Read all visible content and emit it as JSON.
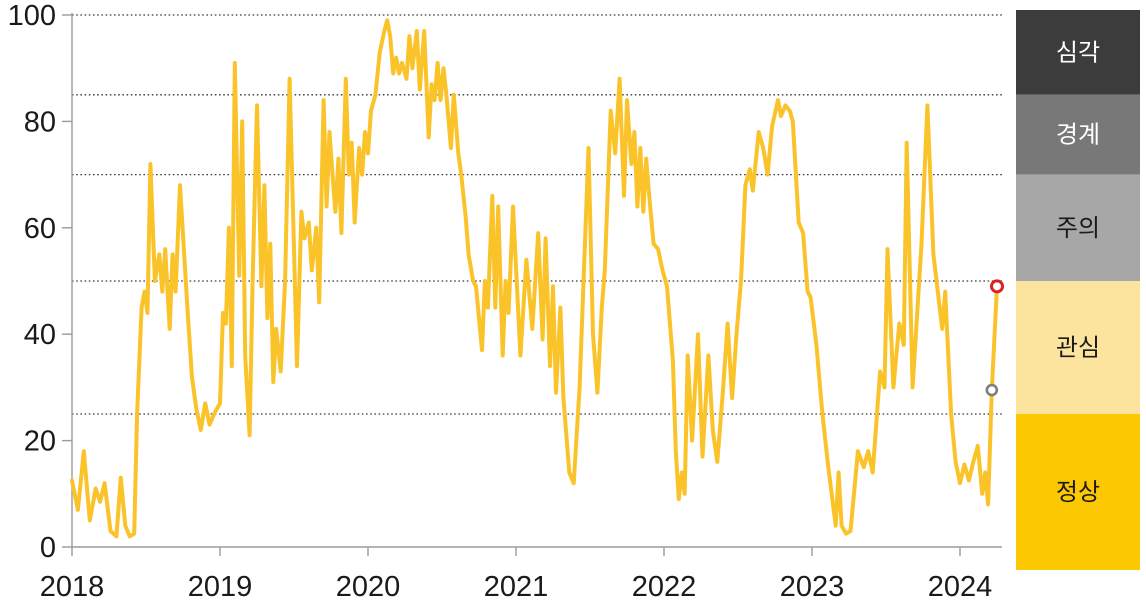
{
  "accent_colors": {
    "line": "#FBC32A",
    "axis": "#9B9B9B",
    "gridline": "#3A3A3A",
    "tick_label": "#1A1A1A",
    "marker_current": "#DF2020",
    "marker_previous": "#7F7F7F"
  },
  "chart_data": {
    "type": "line",
    "title": "",
    "xlabel": "",
    "ylabel": "",
    "x_axis": {
      "ticks": [
        "2018",
        "2019",
        "2020",
        "2021",
        "2022",
        "2023",
        "2024"
      ],
      "range": [
        2018,
        2024.35
      ]
    },
    "y_axis": {
      "ticks": [
        "0",
        "20",
        "40",
        "60",
        "80",
        "100"
      ],
      "tick_values": [
        0,
        20,
        40,
        60,
        80,
        100
      ],
      "range": [
        0,
        100
      ]
    },
    "gridlines_at": [
      100,
      85,
      70,
      50,
      25
    ],
    "grid_style": "dotted horizontal",
    "legend_position": "right color band column",
    "bands": [
      {
        "key": "severe",
        "label": "심각",
        "range": [
          85,
          100
        ],
        "color": "#3C3C3C",
        "text_color": "#FFFFFF"
      },
      {
        "key": "alert",
        "label": "경계",
        "range": [
          70,
          85
        ],
        "color": "#787878",
        "text_color": "#FFFFFF"
      },
      {
        "key": "caution",
        "label": "주의",
        "range": [
          50,
          70
        ],
        "color": "#A7A7A7",
        "text_color": "#1A1A1A"
      },
      {
        "key": "attention",
        "label": "관심",
        "range": [
          25,
          50
        ],
        "color": "#FCE49E",
        "text_color": "#1A1A1A"
      },
      {
        "key": "normal",
        "label": "정상",
        "range": [
          0,
          25
        ],
        "color": "#FCC801",
        "text_color": "#1A1A1A"
      }
    ],
    "markers": [
      {
        "key": "previous-point",
        "shape": "open-circle",
        "color": "#7F7F7F",
        "x": 2024.215,
        "y": 29.5
      },
      {
        "key": "current-point",
        "shape": "open-circle",
        "color": "#DF2020",
        "x": 2024.25,
        "y": 49
      }
    ],
    "series": [
      {
        "name": "index",
        "color": "#FBC32A",
        "points": [
          [
            2018.0,
            12.5
          ],
          [
            2018.04,
            7
          ],
          [
            2018.08,
            18
          ],
          [
            2018.12,
            5
          ],
          [
            2018.16,
            11
          ],
          [
            2018.19,
            8.5
          ],
          [
            2018.22,
            12
          ],
          [
            2018.26,
            3
          ],
          [
            2018.3,
            2
          ],
          [
            2018.33,
            13
          ],
          [
            2018.36,
            4
          ],
          [
            2018.39,
            2
          ],
          [
            2018.42,
            2.5
          ],
          [
            2018.44,
            25
          ],
          [
            2018.47,
            45
          ],
          [
            2018.49,
            48
          ],
          [
            2018.51,
            44
          ],
          [
            2018.53,
            72
          ],
          [
            2018.56,
            50
          ],
          [
            2018.59,
            55
          ],
          [
            2018.61,
            48
          ],
          [
            2018.63,
            56
          ],
          [
            2018.66,
            41
          ],
          [
            2018.68,
            55
          ],
          [
            2018.7,
            48
          ],
          [
            2018.73,
            68
          ],
          [
            2018.76,
            54
          ],
          [
            2018.78,
            45
          ],
          [
            2018.81,
            32
          ],
          [
            2018.84,
            26
          ],
          [
            2018.87,
            22
          ],
          [
            2018.9,
            27
          ],
          [
            2018.93,
            23
          ],
          [
            2018.96,
            25
          ],
          [
            2018.98,
            26
          ],
          [
            2019.0,
            27
          ],
          [
            2019.02,
            44
          ],
          [
            2019.04,
            42
          ],
          [
            2019.06,
            60
          ],
          [
            2019.08,
            34
          ],
          [
            2019.1,
            91
          ],
          [
            2019.13,
            51
          ],
          [
            2019.15,
            80
          ],
          [
            2019.17,
            36
          ],
          [
            2019.2,
            21
          ],
          [
            2019.22,
            50
          ],
          [
            2019.25,
            83
          ],
          [
            2019.28,
            49
          ],
          [
            2019.3,
            68
          ],
          [
            2019.32,
            43
          ],
          [
            2019.34,
            57
          ],
          [
            2019.36,
            31
          ],
          [
            2019.38,
            41
          ],
          [
            2019.41,
            33
          ],
          [
            2019.44,
            50
          ],
          [
            2019.47,
            88
          ],
          [
            2019.5,
            56
          ],
          [
            2019.52,
            34
          ],
          [
            2019.55,
            63
          ],
          [
            2019.57,
            58
          ],
          [
            2019.6,
            61
          ],
          [
            2019.62,
            52
          ],
          [
            2019.65,
            60
          ],
          [
            2019.67,
            46
          ],
          [
            2019.7,
            84
          ],
          [
            2019.72,
            64
          ],
          [
            2019.74,
            78
          ],
          [
            2019.76,
            70
          ],
          [
            2019.78,
            63
          ],
          [
            2019.8,
            73
          ],
          [
            2019.82,
            59
          ],
          [
            2019.85,
            88
          ],
          [
            2019.87,
            70
          ],
          [
            2019.89,
            76
          ],
          [
            2019.91,
            61
          ],
          [
            2019.94,
            75
          ],
          [
            2019.96,
            70
          ],
          [
            2019.98,
            78
          ],
          [
            2020.0,
            74
          ],
          [
            2020.02,
            82
          ],
          [
            2020.05,
            85
          ],
          [
            2020.08,
            93
          ],
          [
            2020.11,
            97
          ],
          [
            2020.13,
            99
          ],
          [
            2020.15,
            96
          ],
          [
            2020.17,
            89
          ],
          [
            2020.19,
            92
          ],
          [
            2020.21,
            89
          ],
          [
            2020.23,
            91
          ],
          [
            2020.26,
            88
          ],
          [
            2020.28,
            96
          ],
          [
            2020.3,
            90
          ],
          [
            2020.33,
            97
          ],
          [
            2020.35,
            86
          ],
          [
            2020.38,
            97
          ],
          [
            2020.41,
            77
          ],
          [
            2020.43,
            87
          ],
          [
            2020.45,
            84
          ],
          [
            2020.47,
            91
          ],
          [
            2020.49,
            84
          ],
          [
            2020.51,
            90
          ],
          [
            2020.53,
            85
          ],
          [
            2020.56,
            75
          ],
          [
            2020.58,
            85
          ],
          [
            2020.61,
            74
          ],
          [
            2020.63,
            70
          ],
          [
            2020.66,
            62
          ],
          [
            2020.68,
            55
          ],
          [
            2020.71,
            50
          ],
          [
            2020.73,
            49
          ],
          [
            2020.75,
            43
          ],
          [
            2020.77,
            37
          ],
          [
            2020.79,
            50
          ],
          [
            2020.81,
            45
          ],
          [
            2020.84,
            66
          ],
          [
            2020.86,
            45
          ],
          [
            2020.88,
            64
          ],
          [
            2020.91,
            36
          ],
          [
            2020.93,
            50
          ],
          [
            2020.95,
            44
          ],
          [
            2020.98,
            64
          ],
          [
            2021.03,
            36
          ],
          [
            2021.07,
            54
          ],
          [
            2021.11,
            41
          ],
          [
            2021.15,
            59
          ],
          [
            2021.18,
            39
          ],
          [
            2021.2,
            58
          ],
          [
            2021.23,
            34
          ],
          [
            2021.25,
            49
          ],
          [
            2021.27,
            29
          ],
          [
            2021.3,
            45
          ],
          [
            2021.32,
            28
          ],
          [
            2021.36,
            14
          ],
          [
            2021.39,
            12
          ],
          [
            2021.43,
            30
          ],
          [
            2021.49,
            75
          ],
          [
            2021.52,
            40
          ],
          [
            2021.55,
            29
          ],
          [
            2021.58,
            45
          ],
          [
            2021.6,
            52
          ],
          [
            2021.64,
            82
          ],
          [
            2021.67,
            74
          ],
          [
            2021.7,
            88
          ],
          [
            2021.73,
            66
          ],
          [
            2021.75,
            84
          ],
          [
            2021.78,
            72
          ],
          [
            2021.8,
            78
          ],
          [
            2021.82,
            64
          ],
          [
            2021.84,
            75
          ],
          [
            2021.86,
            63
          ],
          [
            2021.88,
            73
          ],
          [
            2021.9,
            66
          ],
          [
            2021.93,
            57
          ],
          [
            2021.96,
            56
          ],
          [
            2021.99,
            52
          ],
          [
            2022.02,
            49
          ],
          [
            2022.06,
            35
          ],
          [
            2022.08,
            18
          ],
          [
            2022.1,
            9
          ],
          [
            2022.12,
            14
          ],
          [
            2022.14,
            10
          ],
          [
            2022.16,
            36
          ],
          [
            2022.19,
            20
          ],
          [
            2022.23,
            40
          ],
          [
            2022.26,
            17
          ],
          [
            2022.3,
            36
          ],
          [
            2022.33,
            22
          ],
          [
            2022.36,
            16
          ],
          [
            2022.4,
            30
          ],
          [
            2022.43,
            42
          ],
          [
            2022.46,
            28
          ],
          [
            2022.49,
            40
          ],
          [
            2022.52,
            50
          ],
          [
            2022.55,
            68
          ],
          [
            2022.58,
            71
          ],
          [
            2022.6,
            67
          ],
          [
            2022.64,
            78
          ],
          [
            2022.67,
            75
          ],
          [
            2022.7,
            70
          ],
          [
            2022.73,
            79
          ],
          [
            2022.77,
            84
          ],
          [
            2022.79,
            81
          ],
          [
            2022.82,
            83
          ],
          [
            2022.85,
            82
          ],
          [
            2022.87,
            80
          ],
          [
            2022.91,
            61
          ],
          [
            2022.94,
            59
          ],
          [
            2022.97,
            48
          ],
          [
            2022.99,
            47
          ],
          [
            2023.03,
            38
          ],
          [
            2023.07,
            25
          ],
          [
            2023.11,
            15
          ],
          [
            2023.16,
            4
          ],
          [
            2023.18,
            14
          ],
          [
            2023.2,
            4
          ],
          [
            2023.23,
            2.5
          ],
          [
            2023.26,
            3
          ],
          [
            2023.31,
            18
          ],
          [
            2023.35,
            15
          ],
          [
            2023.38,
            18
          ],
          [
            2023.41,
            14
          ],
          [
            2023.46,
            33
          ],
          [
            2023.49,
            30
          ],
          [
            2023.51,
            56
          ],
          [
            2023.55,
            30
          ],
          [
            2023.59,
            42
          ],
          [
            2023.62,
            38
          ],
          [
            2023.64,
            76
          ],
          [
            2023.68,
            30
          ],
          [
            2023.74,
            57
          ],
          [
            2023.78,
            83
          ],
          [
            2023.82,
            55
          ],
          [
            2023.88,
            41
          ],
          [
            2023.9,
            48
          ],
          [
            2023.94,
            25
          ],
          [
            2023.97,
            16
          ],
          [
            2024.0,
            12
          ],
          [
            2024.03,
            15.5
          ],
          [
            2024.06,
            12.5
          ],
          [
            2024.09,
            16
          ],
          [
            2024.12,
            19
          ],
          [
            2024.15,
            10
          ],
          [
            2024.17,
            14
          ],
          [
            2024.19,
            8
          ],
          [
            2024.215,
            29.5
          ],
          [
            2024.25,
            49
          ]
        ]
      }
    ]
  }
}
